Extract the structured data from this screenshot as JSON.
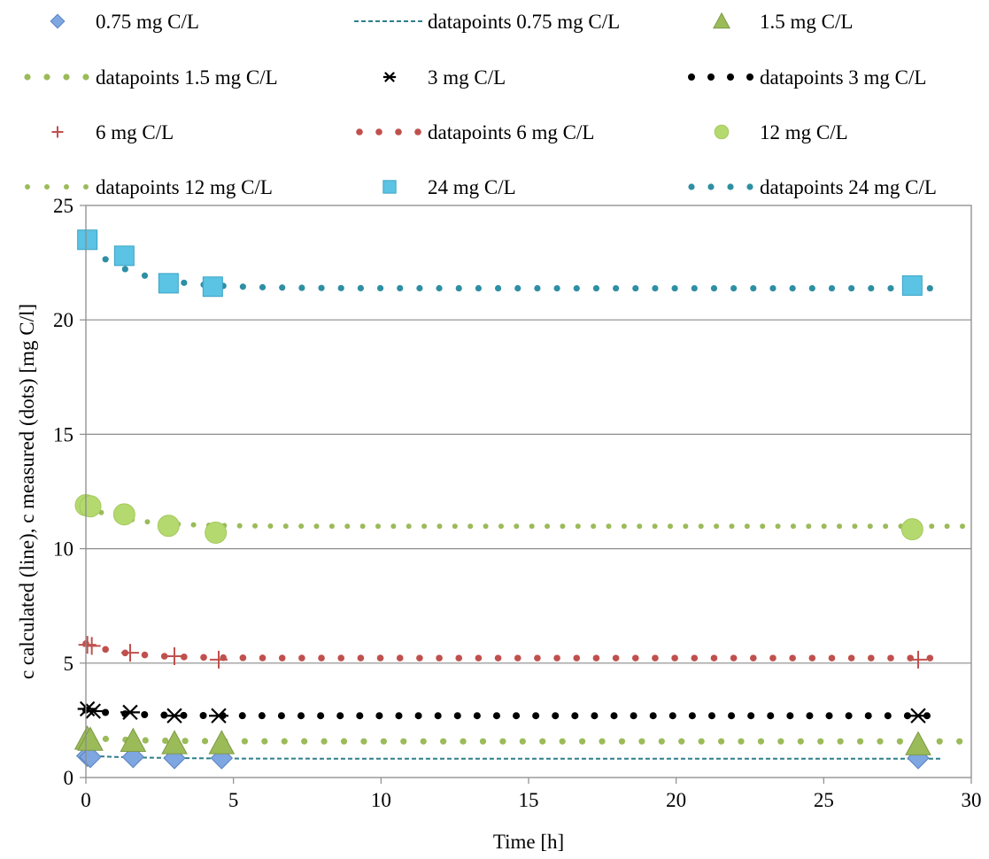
{
  "chart_data": {
    "type": "scatter",
    "title": "",
    "xlabel": "Time [h]",
    "ylabel": "c calculated (line), c measured (dots) [mg C/l]",
    "xlim": [
      0,
      30
    ],
    "ylim": [
      0,
      25
    ],
    "x_ticks": [
      0,
      5,
      10,
      15,
      20,
      25,
      30
    ],
    "y_ticks": [
      0,
      5,
      10,
      15,
      20,
      25
    ],
    "grid": "horizontal",
    "legend": "top",
    "series": [
      {
        "name": "0.75 mg C/L",
        "kind": "marker",
        "marker": "diamond",
        "color": "#7ea6e0",
        "points": [
          [
            0.05,
            0.95
          ],
          [
            0.15,
            0.9
          ],
          [
            1.6,
            0.9
          ],
          [
            3.0,
            0.85
          ],
          [
            4.6,
            0.85
          ],
          [
            28.2,
            0.85
          ]
        ]
      },
      {
        "name": "datapoints 0.75 mg C/L",
        "kind": "dashed-line",
        "color": "#2e7f8a",
        "points": [
          [
            0,
            0.95
          ],
          [
            1,
            0.9
          ],
          [
            2,
            0.87
          ],
          [
            3,
            0.85
          ],
          [
            4,
            0.84
          ],
          [
            5,
            0.83
          ],
          [
            10,
            0.82
          ],
          [
            20,
            0.82
          ],
          [
            29,
            0.82
          ]
        ]
      },
      {
        "name": "1.5 mg C/L",
        "kind": "marker",
        "marker": "triangle",
        "color": "#9bbb59",
        "points": [
          [
            0.05,
            1.7
          ],
          [
            0.15,
            1.65
          ],
          [
            1.6,
            1.6
          ],
          [
            3.0,
            1.5
          ],
          [
            4.6,
            1.5
          ],
          [
            28.2,
            1.45
          ]
        ]
      },
      {
        "name": "datapoints 1.5 mg C/L",
        "kind": "dotted",
        "color": "#9bbb59",
        "dot_r": 3.6,
        "curve": {
          "start": 1.75,
          "end": 1.58,
          "tau": 1.5,
          "x0": 0,
          "x1": 29.6,
          "n": 45
        }
      },
      {
        "name": "3 mg C/L",
        "kind": "marker",
        "marker": "star",
        "color": "#000000",
        "points": [
          [
            0.05,
            3.0
          ],
          [
            0.25,
            2.9
          ],
          [
            1.5,
            2.85
          ],
          [
            3.0,
            2.7
          ],
          [
            4.5,
            2.7
          ],
          [
            28.2,
            2.7
          ]
        ]
      },
      {
        "name": "datapoints 3 mg C/L",
        "kind": "dotted",
        "color": "#000000",
        "dot_r": 4.0,
        "curve": {
          "start": 2.95,
          "end": 2.7,
          "tau": 1.2,
          "x0": 0,
          "x1": 28.5,
          "n": 44
        }
      },
      {
        "name": "6 mg C/L",
        "kind": "marker",
        "marker": "plus",
        "color": "#c0504d",
        "points": [
          [
            0.05,
            5.8
          ],
          [
            0.2,
            5.75
          ],
          [
            1.5,
            5.45
          ],
          [
            3.0,
            5.3
          ],
          [
            4.5,
            5.15
          ],
          [
            28.2,
            5.15
          ]
        ]
      },
      {
        "name": "datapoints 6 mg C/L",
        "kind": "dotted",
        "color": "#c0504d",
        "dot_r": 3.8,
        "curve": {
          "start": 5.85,
          "end": 5.22,
          "tau": 1.3,
          "x0": 0,
          "x1": 28.6,
          "n": 44
        }
      },
      {
        "name": "12 mg C/L",
        "kind": "marker",
        "marker": "circle",
        "color": "#b4d96f",
        "points": [
          [
            0.0,
            11.9
          ],
          [
            0.15,
            11.85
          ],
          [
            1.3,
            11.5
          ],
          [
            2.8,
            11.0
          ],
          [
            4.4,
            10.7
          ],
          [
            28.0,
            10.85
          ]
        ]
      },
      {
        "name": "datapoints 12 mg C/L",
        "kind": "dotted",
        "color": "#9bbb59",
        "dot_r": 3.0,
        "curve": {
          "start": 11.85,
          "end": 10.98,
          "tau": 1.4,
          "x0": 0,
          "x1": 29.7,
          "n": 58
        }
      },
      {
        "name": "24 mg C/L",
        "kind": "marker",
        "marker": "square",
        "color": "#5bc3e3",
        "points": [
          [
            0.05,
            23.5
          ],
          [
            1.3,
            22.8
          ],
          [
            2.8,
            21.6
          ],
          [
            4.3,
            21.45
          ],
          [
            28.0,
            21.5
          ]
        ]
      },
      {
        "name": "datapoints 24 mg C/L",
        "kind": "dotted",
        "color": "#2e8fa4",
        "dot_r": 3.6,
        "curve": {
          "start": 23.3,
          "end": 21.38,
          "tau": 1.6,
          "x0": 0,
          "x1": 28.6,
          "n": 44
        }
      }
    ]
  }
}
